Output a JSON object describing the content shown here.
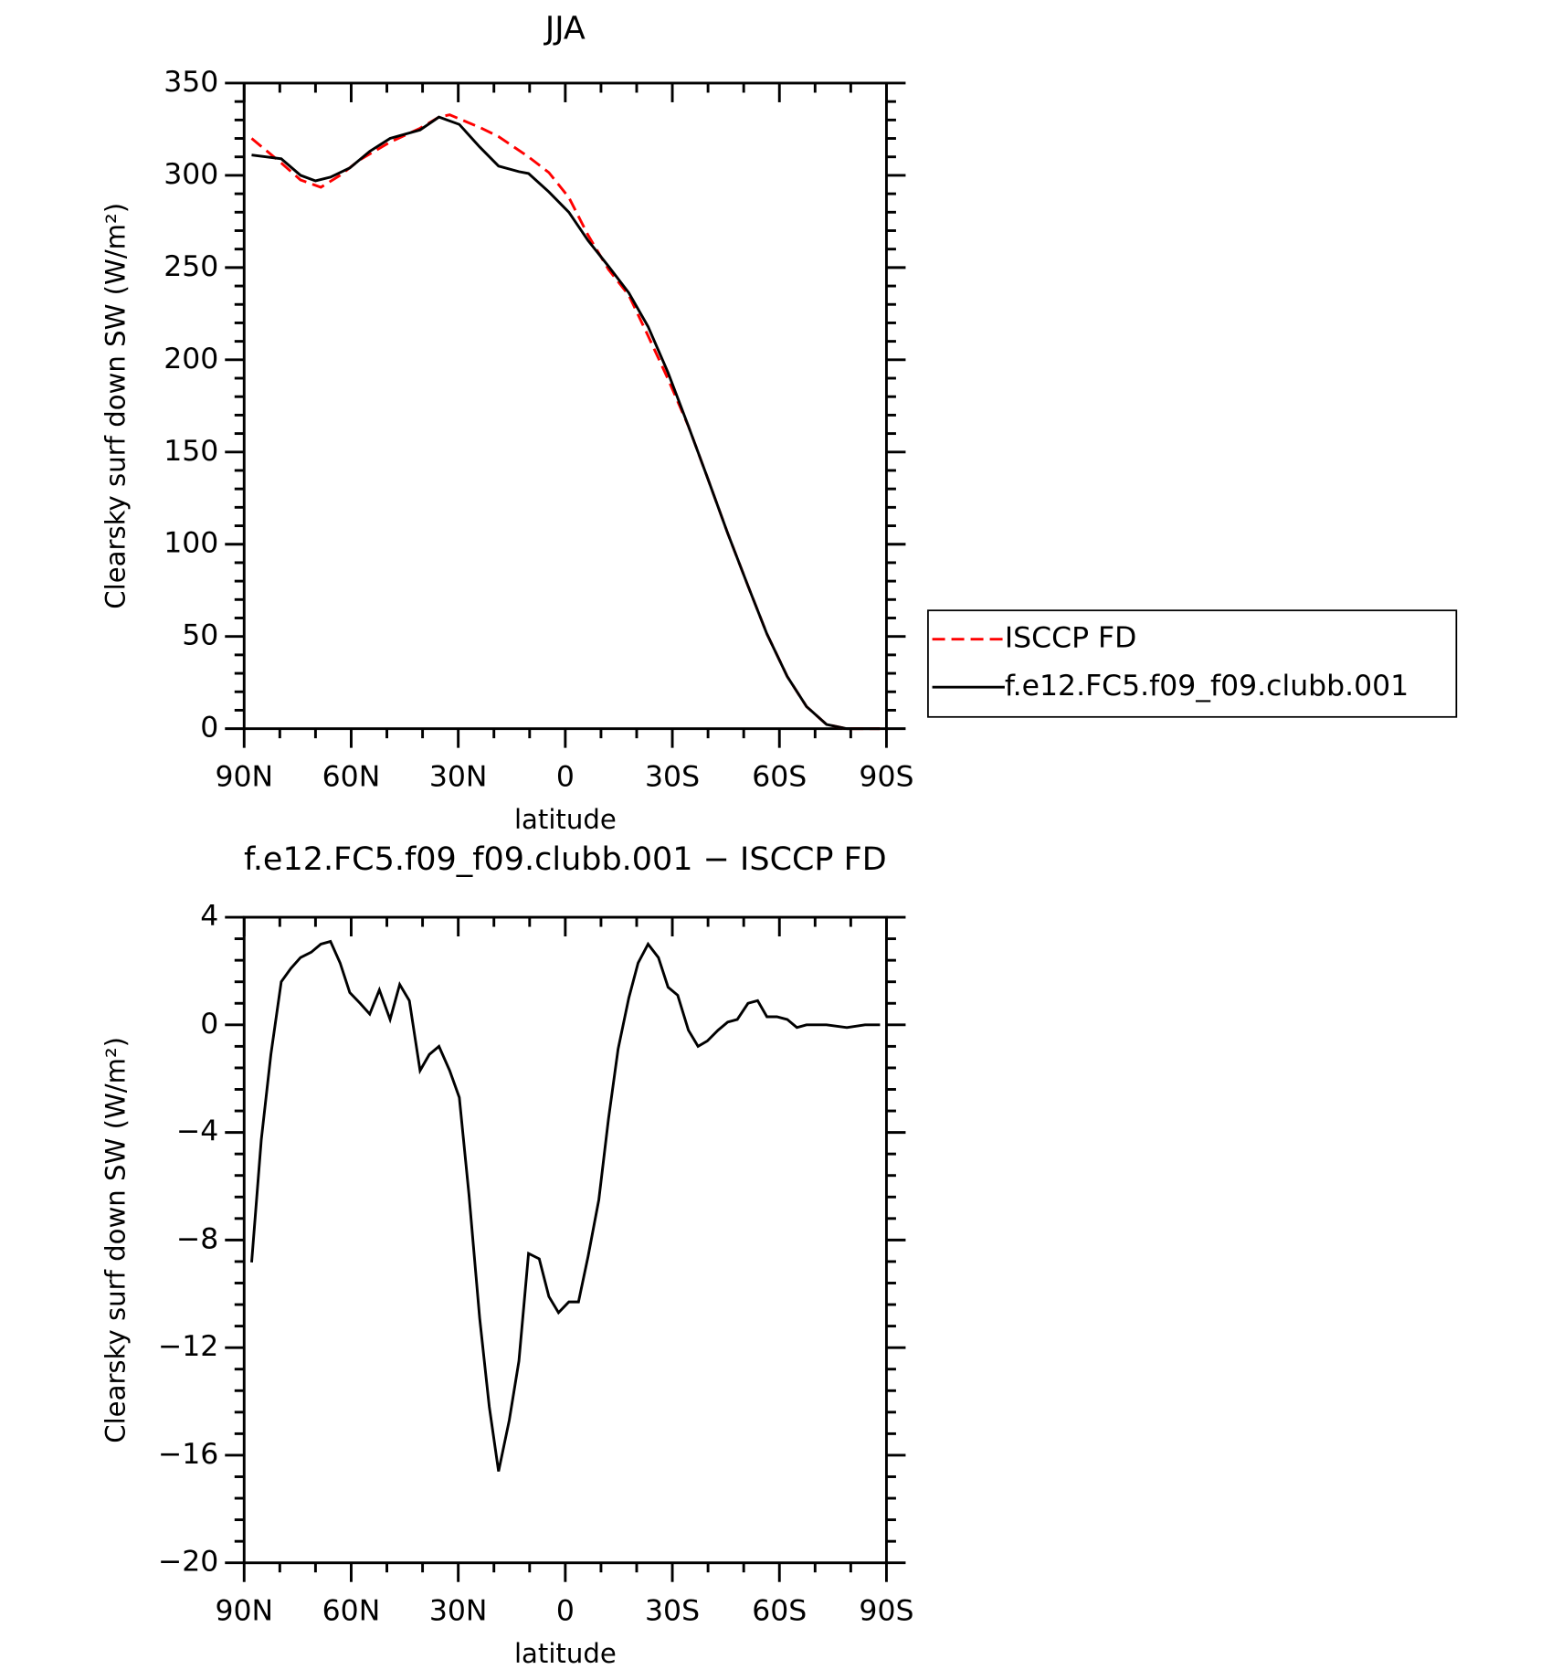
{
  "chart_data": [
    {
      "type": "line",
      "title": "JJA",
      "xlabel": "latitude",
      "ylabel": "Clearsky surf down SW (W/m²)",
      "xlim": [
        90,
        -90
      ],
      "xticks": [
        {
          "value": 90,
          "label": "90N"
        },
        {
          "value": 60,
          "label": "60N"
        },
        {
          "value": 30,
          "label": "30N"
        },
        0,
        {
          "value": -30,
          "label": "30S"
        },
        {
          "value": -60,
          "label": "60S"
        },
        {
          "value": -90,
          "label": "90S"
        }
      ],
      "ylim": [
        0,
        350
      ],
      "yticks": [
        0,
        50,
        100,
        150,
        200,
        250,
        300,
        350
      ],
      "legend": "right",
      "series": [
        {
          "name": "ISCCP FD",
          "color": "#ff0000",
          "style": "dashed",
          "x": [
            87.9,
            79.6,
            74.2,
            68.5,
            63.1,
            57.5,
            49.1,
            40.7,
            35.4,
            32.4,
            24.0,
            18.7,
            10.3,
            4.6,
            -1.0,
            -6.4,
            -12.1,
            -17.8,
            -23.2,
            -28.8,
            -34.5,
            -39.8,
            -45.5,
            -51.2,
            -56.5,
            -62.2,
            -67.6,
            -73.2,
            -78.9,
            -88.2
          ],
          "values": [
            320,
            306.7,
            297.5,
            293.5,
            300,
            308.5,
            318,
            325.5,
            331.6,
            332.8,
            326,
            321,
            310,
            301.5,
            288,
            267.5,
            249,
            235,
            213,
            189.5,
            164,
            136.3,
            106,
            77.4,
            51.4,
            28.3,
            12,
            2.3,
            0,
            0
          ]
        },
        {
          "name": "f.e12.FC5.f09_f09.clubb.001",
          "color": "#000000",
          "style": "solid",
          "x": [
            87.9,
            79.6,
            74.2,
            70.0,
            65.8,
            60.4,
            54.8,
            49.1,
            40.7,
            35.4,
            29.7,
            24.0,
            18.7,
            13.0,
            10.3,
            4.6,
            -1.0,
            -6.4,
            -12.1,
            -17.8,
            -23.2,
            -28.8,
            -34.5,
            -39.8,
            -45.5,
            -51.2,
            -56.5,
            -62.2,
            -67.6,
            -73.2,
            -78.9,
            -88.2
          ],
          "values": [
            311,
            309,
            300,
            297,
            299,
            304,
            313,
            320,
            324.6,
            331.6,
            327.6,
            315.4,
            305,
            302,
            301,
            291,
            280,
            264.6,
            250.7,
            236.3,
            218,
            193,
            164,
            136.3,
            106,
            77.4,
            51.4,
            28.3,
            12,
            2.3,
            0,
            0
          ]
        }
      ]
    },
    {
      "type": "line",
      "title": "f.e12.FC5.f09_f09.clubb.001 − ISCCP FD",
      "xlabel": "latitude",
      "ylabel": "Clearsky surf down SW (W/m²)",
      "xlim": [
        90,
        -90
      ],
      "xticks": [
        {
          "value": 90,
          "label": "90N"
        },
        {
          "value": 60,
          "label": "60N"
        },
        {
          "value": 30,
          "label": "30N"
        },
        0,
        {
          "value": -30,
          "label": "30S"
        },
        {
          "value": -60,
          "label": "60S"
        },
        {
          "value": -90,
          "label": "90S"
        }
      ],
      "ylim": [
        -20,
        4
      ],
      "yticks": [
        {
          "value": -20,
          "label": "−20"
        },
        {
          "value": -16,
          "label": "−16"
        },
        {
          "value": -12,
          "label": "−12"
        },
        {
          "value": -8,
          "label": "−8"
        },
        {
          "value": -4,
          "label": "−4"
        },
        0,
        4
      ],
      "series": [
        {
          "color": "#000000",
          "style": "solid",
          "x": [
            87.9,
            85.2,
            82.5,
            79.6,
            76.9,
            74.2,
            71.2,
            68.5,
            65.8,
            63.1,
            60.4,
            57.5,
            54.8,
            52.1,
            49.1,
            46.4,
            43.7,
            40.7,
            38.1,
            35.4,
            32.4,
            29.7,
            27.0,
            24.0,
            21.3,
            18.7,
            15.7,
            13.0,
            10.3,
            7.3,
            4.6,
            1.9,
            -1.0,
            -3.7,
            -6.4,
            -9.4,
            -12.1,
            -14.8,
            -17.8,
            -20.4,
            -23.2,
            -26.1,
            -28.8,
            -31.5,
            -34.5,
            -37.2,
            -39.8,
            -42.8,
            -45.5,
            -48.2,
            -51.2,
            -53.9,
            -56.5,
            -59.3,
            -62.2,
            -64.9,
            -67.6,
            -73.2,
            -78.9,
            -84.0,
            -88.2
          ],
          "values": [
            -8.83,
            -4.28,
            -1.1,
            1.6,
            2.1,
            2.5,
            2.7,
            3.0,
            3.1,
            2.3,
            1.2,
            0.8,
            0.4,
            1.3,
            0.2,
            1.5,
            0.9,
            -1.7,
            -1.1,
            -0.8,
            -1.7,
            -2.7,
            -6.3,
            -10.9,
            -14.2,
            -16.6,
            -14.7,
            -12.5,
            -8.5,
            -8.7,
            -10.1,
            -10.7,
            -10.3,
            -10.3,
            -8.6,
            -6.5,
            -3.5,
            -0.9,
            1.0,
            2.3,
            3.0,
            2.5,
            1.4,
            1.1,
            -0.2,
            -0.8,
            -0.6,
            -0.2,
            0.1,
            0.2,
            0.8,
            0.9,
            0.3,
            0.3,
            0.2,
            -0.1,
            0,
            0,
            -0.1,
            0,
            0
          ]
        }
      ]
    }
  ]
}
